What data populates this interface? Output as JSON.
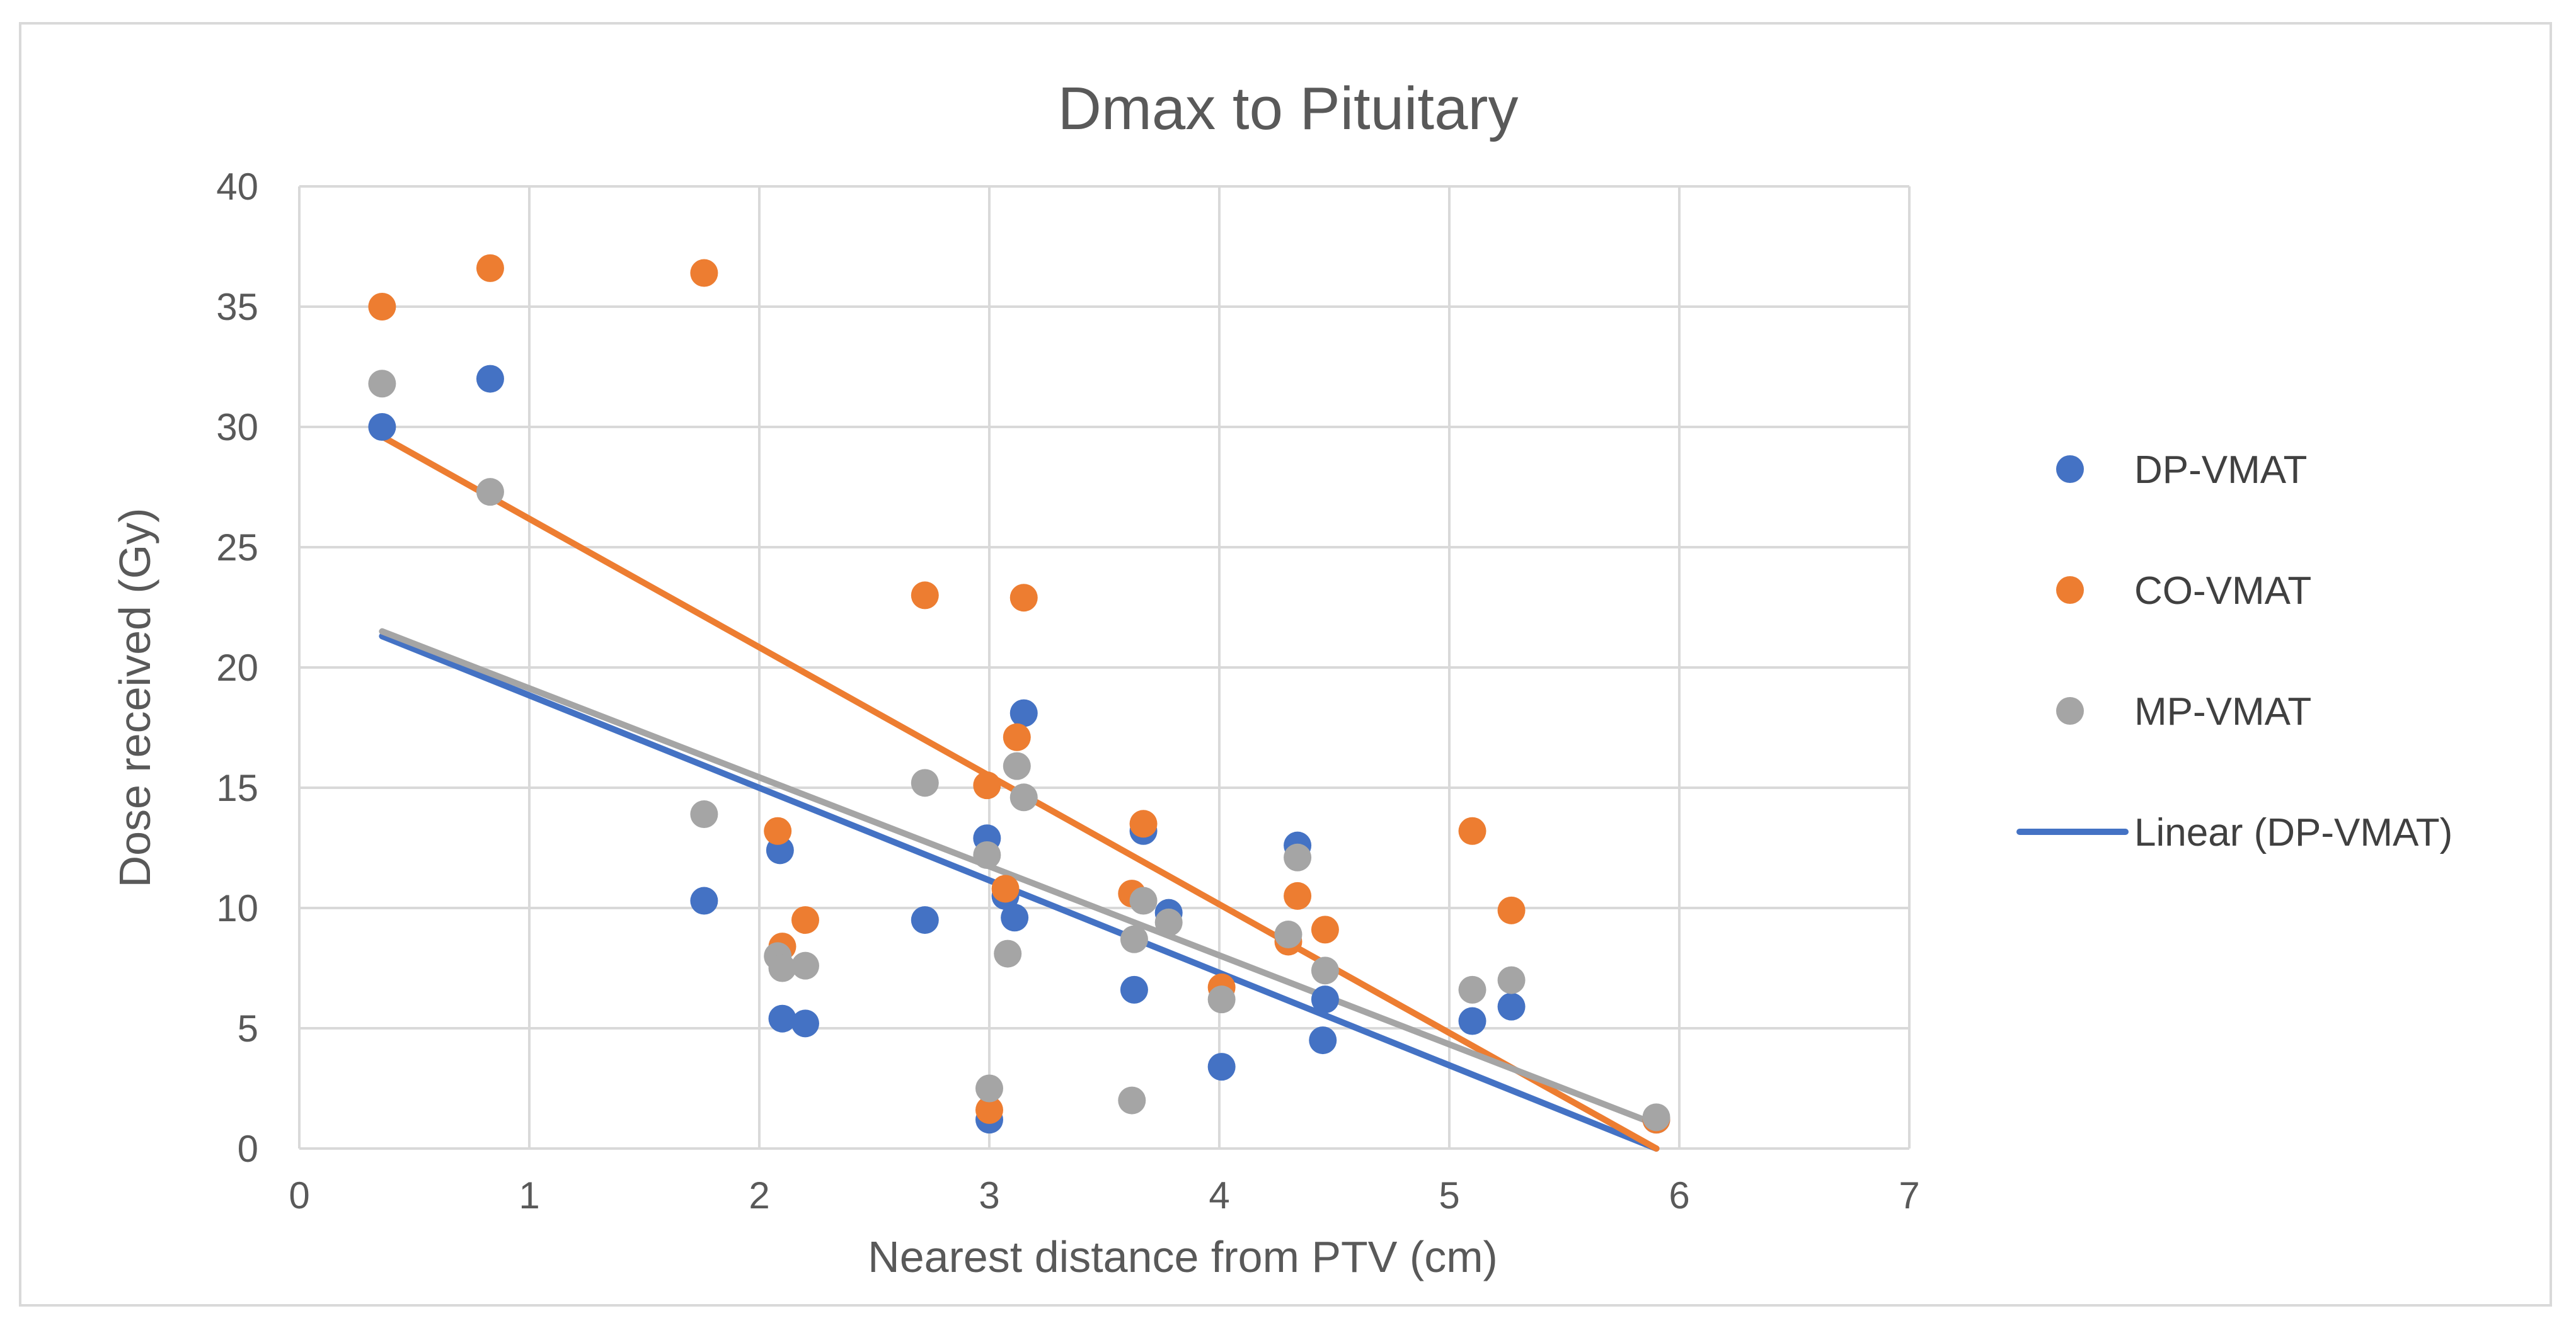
{
  "chart_data": {
    "type": "scatter",
    "title": "Dmax to Pituitary",
    "xlabel": "Nearest distance from PTV (cm)",
    "ylabel": "Dose received (Gy)",
    "xlim": [
      0,
      7
    ],
    "ylim": [
      0,
      40
    ],
    "xticks": [
      0,
      1,
      2,
      3,
      4,
      5,
      6,
      7
    ],
    "yticks": [
      0,
      5,
      10,
      15,
      20,
      25,
      30,
      35,
      40
    ],
    "grid": true,
    "legend_position": "right",
    "series": [
      {
        "name": "DP-VMAT",
        "color": "#4472c4",
        "x": [
          0.36,
          0.83,
          1.76,
          2.09,
          2.1,
          2.2,
          2.72,
          2.99,
          3.0,
          3.07,
          3.11,
          3.15,
          3.63,
          3.67,
          3.78,
          4.01,
          4.34,
          4.46,
          4.45,
          5.1,
          5.27,
          5.9
        ],
        "y": [
          30.0,
          32.0,
          10.3,
          12.4,
          5.4,
          5.2,
          9.5,
          12.9,
          1.2,
          10.5,
          9.6,
          18.1,
          6.6,
          13.2,
          9.8,
          3.4,
          12.6,
          6.2,
          4.5,
          5.3,
          5.9,
          1.2
        ]
      },
      {
        "name": "CO-VMAT",
        "color": "#ed7d31",
        "x": [
          0.36,
          0.83,
          1.76,
          2.08,
          2.1,
          2.2,
          2.72,
          2.99,
          3.0,
          3.07,
          3.12,
          3.15,
          3.62,
          3.67,
          4.01,
          4.3,
          4.34,
          4.46,
          5.1,
          5.27,
          5.9
        ],
        "y": [
          35.0,
          36.6,
          36.4,
          13.2,
          8.4,
          9.5,
          23.0,
          15.1,
          1.6,
          10.8,
          17.1,
          22.9,
          10.6,
          13.5,
          6.7,
          8.6,
          10.5,
          9.1,
          13.2,
          9.9,
          1.2
        ]
      },
      {
        "name": "MP-VMAT",
        "color": "#a5a5a5",
        "x": [
          0.36,
          0.83,
          1.76,
          2.08,
          2.1,
          2.2,
          2.72,
          2.99,
          3.0,
          3.08,
          3.12,
          3.15,
          3.63,
          3.62,
          3.67,
          3.78,
          4.01,
          4.3,
          4.34,
          4.46,
          5.1,
          5.27,
          5.9
        ],
        "y": [
          31.8,
          27.3,
          13.9,
          8.0,
          7.5,
          7.6,
          15.2,
          12.2,
          2.5,
          8.1,
          15.9,
          14.6,
          8.7,
          2.0,
          10.3,
          9.4,
          6.2,
          8.9,
          12.1,
          7.4,
          6.6,
          7.0,
          1.3
        ]
      }
    ],
    "trendlines": [
      {
        "name": "Linear (DP-VMAT)",
        "series": "DP-VMAT",
        "color": "#4472c4",
        "x": [
          0.36,
          5.9
        ],
        "y": [
          21.3,
          0.0
        ]
      },
      {
        "name": "Linear (CO-VMAT)",
        "series": "CO-VMAT",
        "color": "#ed7d31",
        "x": [
          0.36,
          5.9
        ],
        "y": [
          29.6,
          0.0
        ]
      },
      {
        "name": "Linear (MP-VMAT)",
        "series": "MP-VMAT",
        "color": "#a5a5a5",
        "x": [
          0.36,
          5.9
        ],
        "y": [
          21.5,
          1.0
        ]
      }
    ],
    "legend": [
      {
        "label": "DP-VMAT",
        "kind": "marker",
        "color": "#4472c4"
      },
      {
        "label": "CO-VMAT",
        "kind": "marker",
        "color": "#ed7d31"
      },
      {
        "label": "MP-VMAT",
        "kind": "marker",
        "color": "#a5a5a5"
      },
      {
        "label": "Linear (DP-VMAT)",
        "kind": "line",
        "color": "#4472c4"
      }
    ]
  }
}
